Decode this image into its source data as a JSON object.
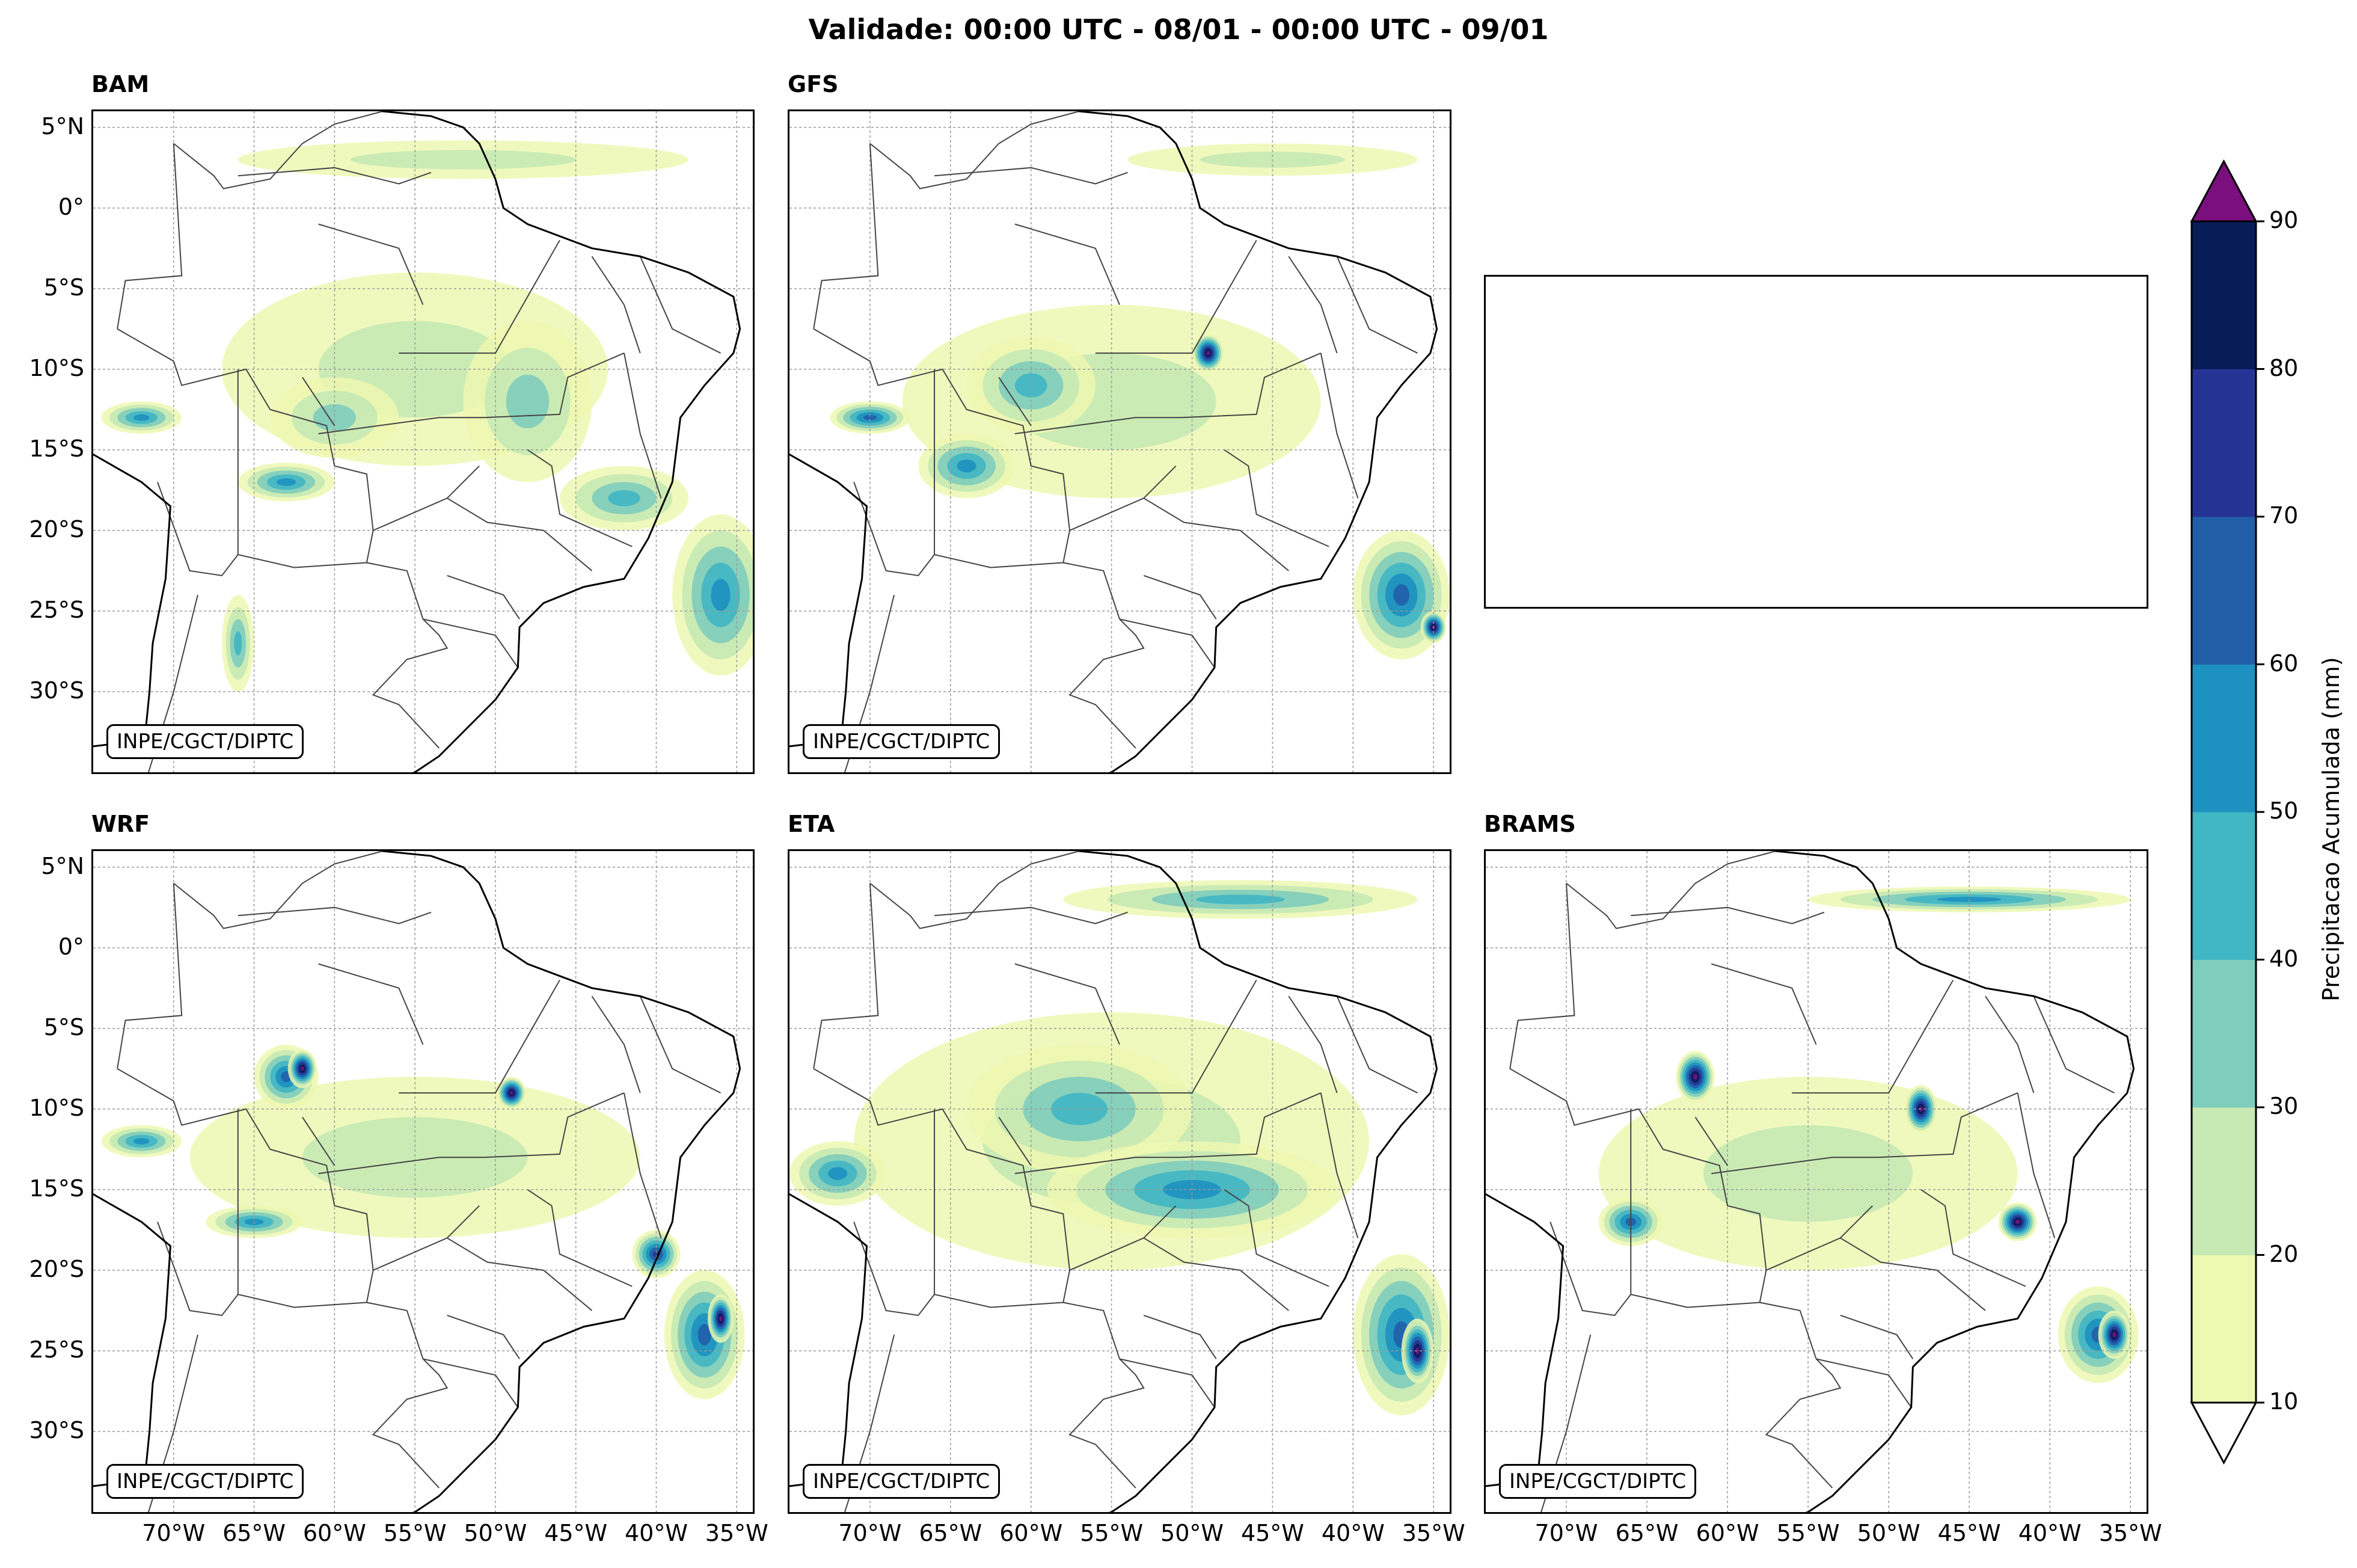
{
  "title": "Validade: 00:00 UTC - 08/01 - 00:00 UTC - 09/01",
  "credit": "INPE/CGCT/DIPTC",
  "panels": [
    {
      "name": "BAM",
      "empty": false
    },
    {
      "name": "GFS",
      "empty": false
    },
    {
      "name": "",
      "empty": true
    },
    {
      "name": "WRF",
      "empty": false
    },
    {
      "name": "ETA",
      "empty": false
    },
    {
      "name": "BRAMS",
      "empty": false
    }
  ],
  "lat_ticks": [
    "5°N",
    "0°",
    "5°S",
    "10°S",
    "15°S",
    "20°S",
    "25°S",
    "30°S"
  ],
  "lat_values": [
    5,
    0,
    -5,
    -10,
    -15,
    -20,
    -25,
    -30
  ],
  "lon_ticks": [
    "70°W",
    "65°W",
    "60°W",
    "55°W",
    "50°W",
    "45°W",
    "40°W",
    "35°W"
  ],
  "lon_values": [
    -70,
    -65,
    -60,
    -55,
    -50,
    -45,
    -40,
    -35
  ],
  "extent": {
    "lon_min": -75,
    "lon_max": -34,
    "lat_min": -35,
    "lat_max": 6
  },
  "colorbar": {
    "label": "Precipitacao Acumulada (mm)",
    "levels": [
      10,
      20,
      30,
      40,
      50,
      60,
      70,
      80,
      90
    ],
    "level_labels": [
      "10",
      "20",
      "30",
      "40",
      "50",
      "60",
      "70",
      "80",
      "90"
    ],
    "colors": [
      "#edf8b1",
      "#c7e9b4",
      "#7fcdbb",
      "#41b6c4",
      "#1d91c0",
      "#225ea8",
      "#253494",
      "#081d58"
    ],
    "over_color": "#7b0f7e",
    "under_color": "#ffffff"
  },
  "chart_data": {
    "type": "map",
    "title": "Validade: 00:00 UTC - 08/01 - 00:00 UTC - 09/01",
    "xlabel": "",
    "ylabel": "",
    "colorbar_label": "Precipitacao Acumulada (mm)",
    "colorbar_range": [
      10,
      90
    ],
    "panels": [
      "BAM",
      "GFS",
      "WRF",
      "ETA",
      "BRAMS"
    ],
    "precip_regions": {
      "BAM": [
        {
          "lon": -55,
          "lat": -10,
          "rx": 12,
          "ry": 6,
          "level": 1
        },
        {
          "lon": -48,
          "lat": -12,
          "rx": 4,
          "ry": 5,
          "level": 2
        },
        {
          "lon": -60,
          "lat": -13,
          "rx": 4,
          "ry": 2.5,
          "level": 2
        },
        {
          "lon": -63,
          "lat": -17,
          "rx": 3,
          "ry": 1.2,
          "level": 4
        },
        {
          "lon": -42,
          "lat": -18,
          "rx": 4,
          "ry": 2,
          "level": 3
        },
        {
          "lon": -36,
          "lat": -24,
          "rx": 3,
          "ry": 5,
          "level": 4
        },
        {
          "lon": -72,
          "lat": -13,
          "rx": 2.5,
          "ry": 1,
          "level": 4
        },
        {
          "lon": -52,
          "lat": 3,
          "rx": 14,
          "ry": 1.2,
          "level": 1
        },
        {
          "lon": -66,
          "lat": -27,
          "rx": 1,
          "ry": 3,
          "level": 3
        }
      ],
      "GFS": [
        {
          "lon": -55,
          "lat": -12,
          "rx": 13,
          "ry": 6,
          "level": 1
        },
        {
          "lon": -60,
          "lat": -11,
          "rx": 4,
          "ry": 3,
          "level": 3
        },
        {
          "lon": -49,
          "lat": -9,
          "rx": 1,
          "ry": 1.2,
          "level": 8
        },
        {
          "lon": -64,
          "lat": -16,
          "rx": 3,
          "ry": 2,
          "level": 4
        },
        {
          "lon": -37,
          "lat": -24,
          "rx": 3,
          "ry": 4,
          "level": 5
        },
        {
          "lon": -35,
          "lat": -26,
          "rx": 0.8,
          "ry": 1,
          "level": 8
        },
        {
          "lon": -45,
          "lat": 3,
          "rx": 9,
          "ry": 1,
          "level": 1
        },
        {
          "lon": -70,
          "lat": -13,
          "rx": 2.5,
          "ry": 1,
          "level": 5
        }
      ],
      "WRF": [
        {
          "lon": -55,
          "lat": -13,
          "rx": 14,
          "ry": 5,
          "level": 1
        },
        {
          "lon": -63,
          "lat": -8,
          "rx": 2,
          "ry": 2,
          "level": 5
        },
        {
          "lon": -62,
          "lat": -7.5,
          "rx": 0.9,
          "ry": 1.2,
          "level": 8
        },
        {
          "lon": -49,
          "lat": -9,
          "rx": 0.9,
          "ry": 1,
          "level": 8
        },
        {
          "lon": -40,
          "lat": -19,
          "rx": 1.5,
          "ry": 1.5,
          "level": 6
        },
        {
          "lon": -37,
          "lat": -24,
          "rx": 2.5,
          "ry": 4,
          "level": 5
        },
        {
          "lon": -36,
          "lat": -23,
          "rx": 0.8,
          "ry": 1.5,
          "level": 8
        },
        {
          "lon": -65,
          "lat": -17,
          "rx": 3,
          "ry": 1,
          "level": 4
        },
        {
          "lon": -72,
          "lat": -12,
          "rx": 2.5,
          "ry": 1,
          "level": 4
        }
      ],
      "ETA": [
        {
          "lon": -55,
          "lat": -12,
          "rx": 16,
          "ry": 8,
          "level": 1
        },
        {
          "lon": -57,
          "lat": -10,
          "rx": 7,
          "ry": 4,
          "level": 3
        },
        {
          "lon": -50,
          "lat": -15,
          "rx": 9,
          "ry": 3,
          "level": 4
        },
        {
          "lon": -47,
          "lat": 3,
          "rx": 11,
          "ry": 1.2,
          "level": 3
        },
        {
          "lon": -37,
          "lat": -24,
          "rx": 3,
          "ry": 5,
          "level": 5
        },
        {
          "lon": -36,
          "lat": -25,
          "rx": 1,
          "ry": 2,
          "level": 8
        },
        {
          "lon": -72,
          "lat": -14,
          "rx": 3,
          "ry": 2,
          "level": 4
        }
      ],
      "BRAMS": [
        {
          "lon": -55,
          "lat": -14,
          "rx": 13,
          "ry": 6,
          "level": 1
        },
        {
          "lon": -62,
          "lat": -8,
          "rx": 1.2,
          "ry": 1.6,
          "level": 8
        },
        {
          "lon": -48,
          "lat": -10,
          "rx": 1,
          "ry": 1.5,
          "level": 8
        },
        {
          "lon": -42,
          "lat": -17,
          "rx": 1.2,
          "ry": 1.2,
          "level": 8
        },
        {
          "lon": -37,
          "lat": -24,
          "rx": 2.5,
          "ry": 3,
          "level": 5
        },
        {
          "lon": -36,
          "lat": -24,
          "rx": 1,
          "ry": 1.5,
          "level": 8
        },
        {
          "lon": -66,
          "lat": -17,
          "rx": 2,
          "ry": 1.5,
          "level": 5
        },
        {
          "lon": -45,
          "lat": 3,
          "rx": 10,
          "ry": 0.8,
          "level": 4
        }
      ]
    }
  }
}
